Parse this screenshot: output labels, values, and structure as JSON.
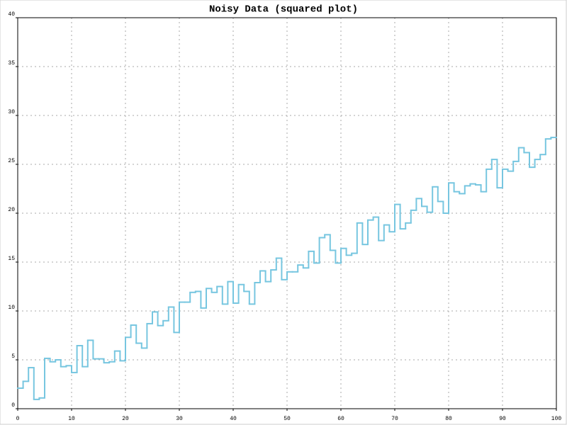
{
  "chart_data": {
    "type": "step",
    "title": "Noisy Data (squared plot)",
    "color": "#77c6e0",
    "grid": true,
    "xlim": [
      0,
      100
    ],
    "ylim": [
      0,
      40
    ],
    "xticks": [
      0,
      10,
      20,
      30,
      40,
      50,
      60,
      70,
      80,
      90,
      100
    ],
    "yticks": [
      0,
      5,
      10,
      15,
      20,
      25,
      30,
      35,
      40
    ],
    "x": [
      0,
      1,
      2,
      3,
      4,
      5,
      6,
      7,
      8,
      9,
      10,
      11,
      12,
      13,
      14,
      15,
      16,
      17,
      18,
      19,
      20,
      21,
      22,
      23,
      24,
      25,
      26,
      27,
      28,
      29,
      30,
      31,
      32,
      33,
      34,
      35,
      36,
      37,
      38,
      39,
      40,
      41,
      42,
      43,
      44,
      45,
      46,
      47,
      48,
      49,
      50,
      51,
      52,
      53,
      54,
      55,
      56,
      57,
      58,
      59,
      60,
      61,
      62,
      63,
      64,
      65,
      66,
      67,
      68,
      69,
      70,
      71,
      72,
      73,
      74,
      75,
      76,
      77,
      78,
      79,
      80,
      81,
      82,
      83,
      84,
      85,
      86,
      87,
      88,
      89,
      90,
      91,
      92,
      93,
      94,
      95,
      96,
      97,
      98,
      99
    ],
    "values": [
      2.1,
      2.8,
      4.2,
      0.95,
      1.1,
      5.15,
      4.8,
      5.0,
      4.3,
      4.4,
      3.7,
      6.45,
      4.3,
      7.0,
      5.1,
      5.1,
      4.7,
      4.8,
      5.9,
      4.9,
      7.3,
      8.55,
      6.7,
      6.2,
      8.7,
      9.9,
      8.5,
      9.0,
      10.4,
      7.8,
      10.9,
      10.9,
      11.9,
      12.0,
      10.3,
      12.3,
      11.9,
      12.5,
      10.7,
      13.0,
      10.8,
      12.7,
      12.0,
      10.7,
      12.9,
      14.1,
      13.0,
      14.2,
      15.4,
      13.2,
      14.0,
      14.0,
      14.7,
      14.4,
      16.1,
      14.9,
      17.5,
      17.8,
      16.2,
      14.9,
      16.4,
      15.7,
      15.9,
      19.0,
      16.8,
      19.3,
      19.6,
      17.2,
      18.8,
      18.1,
      20.9,
      18.4,
      19.0,
      20.3,
      21.5,
      20.7,
      20.1,
      22.7,
      21.2,
      20.0,
      23.1,
      22.2,
      22.0,
      22.8,
      23.0,
      22.9,
      22.2,
      24.5,
      25.5,
      22.6,
      24.5,
      24.3,
      25.3,
      26.7,
      26.2,
      24.7,
      25.5,
      26.0,
      27.6,
      27.75
    ]
  }
}
